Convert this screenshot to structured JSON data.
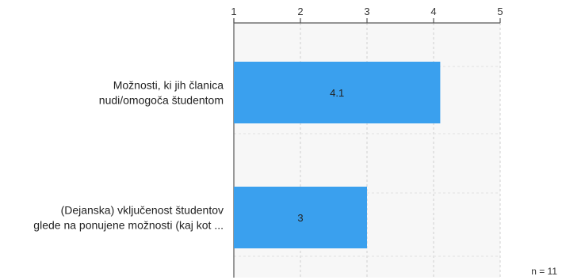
{
  "chart_data": {
    "type": "bar",
    "orientation": "horizontal",
    "categories": [
      [
        "Možnosti, ki jih članica",
        "nudi/omogoča študentom"
      ],
      [
        "(Dejanska) vključenost študentov",
        "glede na ponujene možnosti (kaj kot ..."
      ]
    ],
    "values": [
      4.1,
      3
    ],
    "value_labels": [
      "4.1",
      "3"
    ],
    "xlim": [
      1,
      5
    ],
    "x_ticks": [
      1,
      2,
      3,
      4,
      5
    ],
    "x_tick_labels": [
      "1",
      "2",
      "3",
      "4",
      "5"
    ],
    "axis_position": "top",
    "grid": true,
    "bar_color": "#3aa0ee",
    "plot_background": "#f7f7f7",
    "title": "",
    "xlabel": "",
    "ylabel": ""
  },
  "sample_size_label": "n = 11"
}
